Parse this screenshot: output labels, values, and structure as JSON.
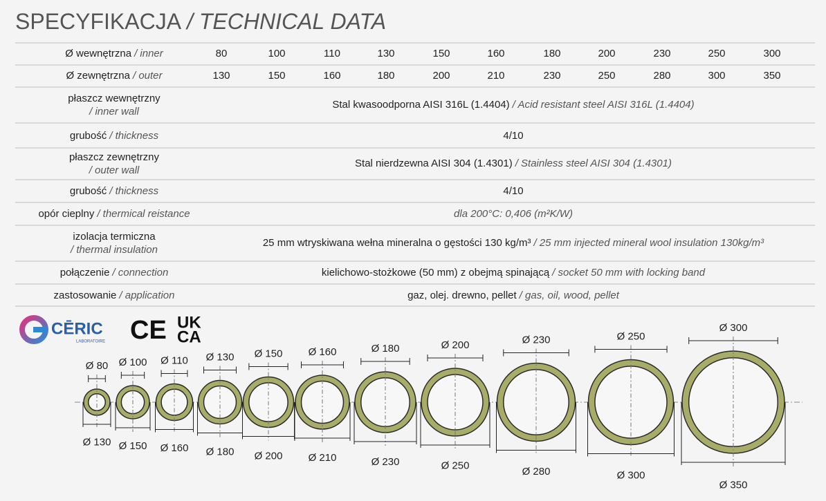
{
  "title": {
    "pl": "SPECYFIKACJA",
    "en": "/ TECHNICAL DATA"
  },
  "table": {
    "rows": [
      {
        "label_pl": "Ø wewnętrzna",
        "label_en": "/ inner",
        "values": [
          80,
          100,
          110,
          130,
          150,
          160,
          180,
          200,
          230,
          250,
          300
        ]
      },
      {
        "label_pl": "Ø zewnętrzna",
        "label_en": "/ outer",
        "values": [
          130,
          150,
          160,
          180,
          200,
          210,
          230,
          250,
          280,
          300,
          350
        ]
      },
      {
        "label_pl": "płaszcz wewnętrzny",
        "label_en": "/ inner wall",
        "value_pl": "Stal kwasoodporna AISI 316L (1.4404)",
        "value_en": "/ Acid resistant steel AISI 316L (1.4404)"
      },
      {
        "label_pl": "grubość",
        "label_en": "/ thickness",
        "value_pl": "4/10"
      },
      {
        "label_pl": "płaszcz zewnętrzny",
        "label_en": "/ outer wall",
        "value_pl": "Stal nierdzewna AISI 304 (1.4301)",
        "value_en": "/ Stainless steel AISI 304 (1.4301)"
      },
      {
        "label_pl": "grubość",
        "label_en": "/ thickness",
        "value_pl": "4/10"
      },
      {
        "label_pl": "opór cieplny",
        "label_en": "/ thermical reistance",
        "value_en": "dla 200°C: 0,406  (m²K/W)"
      },
      {
        "label_pl": "izolacja termiczna",
        "label_en": "/ thermal insulation",
        "value_pl": "25 mm wtryskiwana wełna mineralna o gęstości 130 kg/m³",
        "value_en": "/ 25 mm injected mineral wool insulation 130kg/m³"
      },
      {
        "label_pl": "połączenie",
        "label_en": "/ connection",
        "value_pl": "kielichowo-stożkowe (50 mm) z obejmą spinającą",
        "value_en": "/ socket 50 mm with locking band"
      },
      {
        "label_pl": "zastosowanie",
        "label_en": "/ application",
        "value_pl": "gaz, olej. drewno, pellet",
        "value_en": "/ gas, oil, wood, pellet"
      }
    ]
  },
  "logos": {
    "ceric": "CĒRIC",
    "ceric_sub": "LABORATOIRE",
    "ce": "CE",
    "ukca_top": "UK",
    "ukca_bottom": "CA"
  },
  "diagram": {
    "inner_labels": [
      "Ø 80",
      "Ø 100",
      "Ø 110",
      "Ø 130",
      "Ø 150",
      "Ø 160",
      "Ø 180",
      "Ø 200",
      "Ø 230",
      "Ø 250",
      "Ø 300"
    ],
    "outer_labels": [
      "Ø 130",
      "Ø 150",
      "Ø 160",
      "Ø 180",
      "Ø 200",
      "Ø 210",
      "Ø 230",
      "Ø 250",
      "Ø 280",
      "Ø 300",
      "Ø 350"
    ]
  }
}
